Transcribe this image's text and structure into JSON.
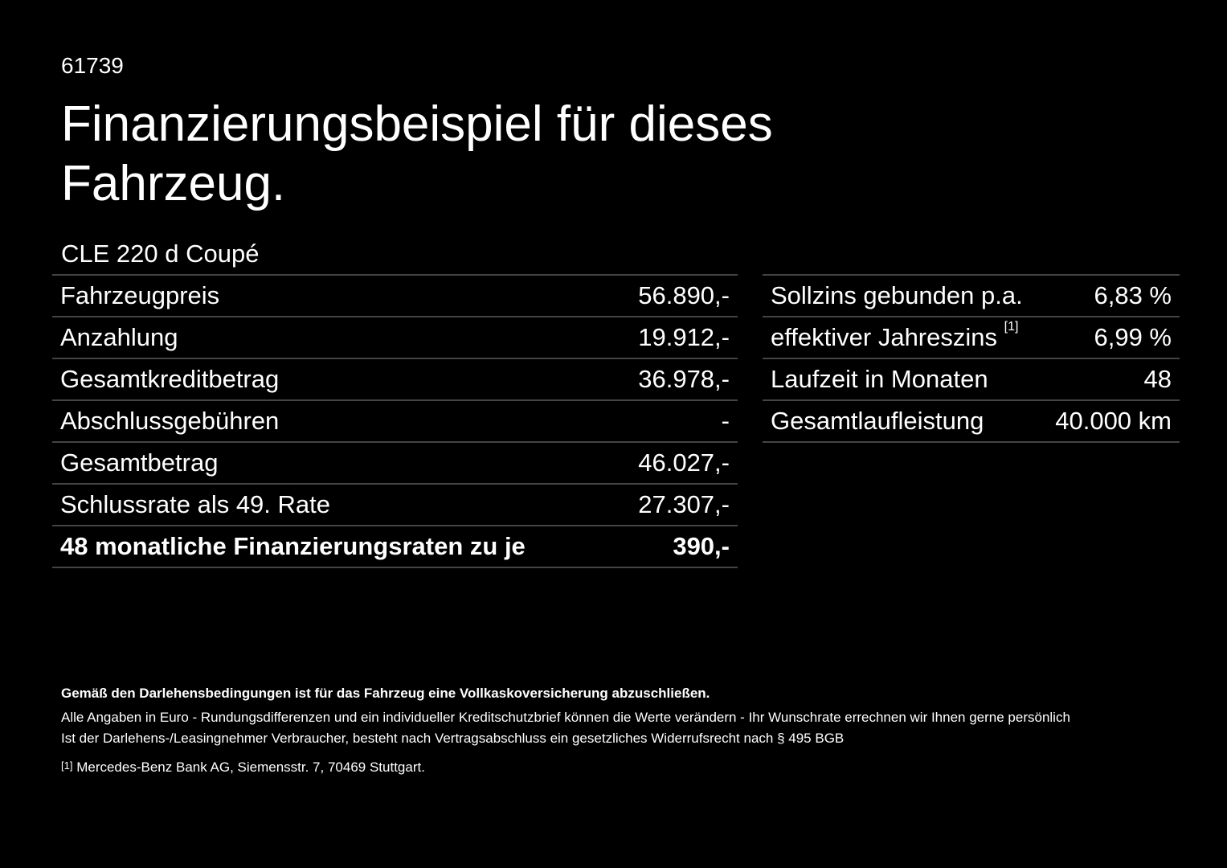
{
  "header": {
    "code": "61739",
    "title_line1": "Finanzierungsbeispiel für dieses",
    "title_line2": "Fahrzeug."
  },
  "model": "CLE 220 d Coupé",
  "left_table": {
    "rows": [
      [
        "Fahrzeugpreis",
        "56.890,-"
      ],
      [
        "Anzahlung",
        "19.912,-"
      ],
      [
        "Gesamtkreditbetrag",
        "36.978,-"
      ],
      [
        "Abschlussgebühren",
        "-"
      ],
      [
        "Gesamtbetrag",
        "46.027,-"
      ],
      [
        "Schlussrate als 49. Rate",
        "27.307,-"
      ],
      [
        "48 monatliche Finanzierungsraten zu je",
        "390,-"
      ]
    ]
  },
  "right_table": {
    "rows": [
      [
        "Sollzins gebunden p.a.",
        "6,83 %"
      ],
      [
        "effektiver Jahreszins",
        "6,99 %"
      ],
      [
        "Laufzeit in Monaten",
        "48"
      ],
      [
        "Gesamtlaufleistung",
        "40.000 km"
      ]
    ],
    "footnote_marker": "[1]"
  },
  "footer": {
    "bold_note": "Gemäß den Darlehensbedingungen ist für das Fahrzeug eine Vollkaskoversicherung abzuschließen.",
    "line1": "Alle Angaben in Euro - Rundungsdifferenzen und ein individueller Kreditschutzbrief können die Werte verändern - Ihr Wunschrate errechnen wir Ihnen gerne persönlich",
    "line2": "Ist der Darlehens-/Leasingnehmer Verbraucher, besteht nach Vertragsabschluss ein gesetzliches Widerrufsrecht nach § 495 BGB",
    "footnote_marker": "[1]",
    "footnote_text": "Mercedes-Benz Bank AG, Siemensstr. 7, 70469 Stuttgart."
  }
}
